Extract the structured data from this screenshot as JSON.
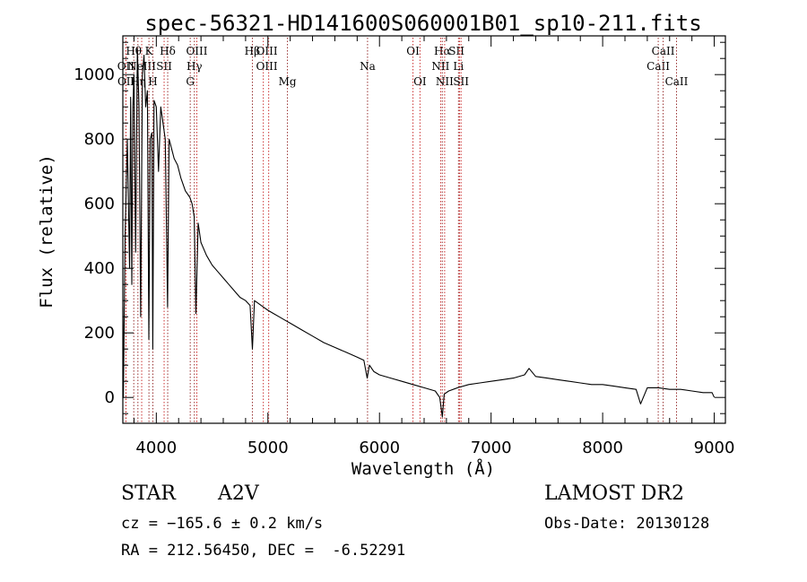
{
  "chart_data": {
    "type": "line",
    "title": "spec-56321-HD141600S060001B01_sp10-211.fits",
    "xlabel": "Wavelength (Å)",
    "ylabel": "Flux (relative)",
    "xlim": [
      3700,
      9100
    ],
    "ylim": [
      -80,
      1120
    ],
    "xticks": [
      4000,
      5000,
      6000,
      7000,
      8000,
      9000
    ],
    "yticks": [
      0,
      200,
      400,
      600,
      800,
      1000
    ],
    "grid": false,
    "series": [
      {
        "color": "#000000",
        "x": [
          3700,
          3705,
          3720,
          3740,
          3760,
          3770,
          3780,
          3790,
          3800,
          3815,
          3830,
          3845,
          3860,
          3875,
          3890,
          3905,
          3920,
          3933,
          3945,
          3960,
          3968,
          3980,
          4000,
          4020,
          4040,
          4060,
          4080,
          4101,
          4115,
          4130,
          4160,
          4190,
          4220,
          4260,
          4300,
          4320,
          4340,
          4355,
          4375,
          4400,
          4450,
          4500,
          4550,
          4600,
          4650,
          4700,
          4750,
          4800,
          4840,
          4861,
          4880,
          4920,
          4960,
          5000,
          5050,
          5100,
          5150,
          5200,
          5300,
          5400,
          5500,
          5600,
          5700,
          5800,
          5860,
          5890,
          5910,
          5950,
          6000,
          6100,
          6200,
          6300,
          6400,
          6500,
          6540,
          6563,
          6580,
          6620,
          6700,
          6800,
          6900,
          7000,
          7100,
          7200,
          7300,
          7340,
          7400,
          7500,
          7600,
          7700,
          7800,
          7900,
          8000,
          8100,
          8200,
          8300,
          8340,
          8400,
          8500,
          8600,
          8700,
          8800,
          8900,
          8980,
          9000
        ],
        "y": [
          280,
          0,
          500,
          800,
          400,
          930,
          350,
          900,
          1000,
          450,
          1080,
          900,
          250,
          1000,
          1060,
          900,
          950,
          180,
          800,
          820,
          150,
          920,
          900,
          700,
          900,
          850,
          800,
          280,
          800,
          780,
          740,
          720,
          680,
          640,
          620,
          600,
          560,
          260,
          540,
          480,
          440,
          410,
          390,
          370,
          350,
          330,
          310,
          300,
          285,
          150,
          300,
          290,
          280,
          270,
          260,
          250,
          240,
          230,
          210,
          190,
          170,
          155,
          140,
          125,
          115,
          60,
          100,
          80,
          70,
          60,
          50,
          40,
          30,
          20,
          0,
          -60,
          10,
          20,
          30,
          40,
          45,
          50,
          55,
          60,
          70,
          90,
          65,
          60,
          55,
          50,
          45,
          40,
          40,
          35,
          30,
          25,
          -20,
          30,
          30,
          25,
          25,
          20,
          15,
          15,
          0
        ]
      }
    ],
    "line_markers": [
      {
        "label": "Hβ",
        "wave": 4861,
        "row": 1,
        "kind": "unshifted",
        "text_x": 4860
      },
      {
        "label": "OIII",
        "wave": 4959,
        "row": 1,
        "kind": "shifted",
        "text_x": 4990
      },
      {
        "label": "OIII",
        "wave": 5007,
        "row": 2,
        "kind": "shifted",
        "text_x": 4990
      },
      {
        "label": "Mg",
        "wave": 5175,
        "row": 3,
        "kind": "unshifted",
        "text_x": 5175
      },
      {
        "label": "Na",
        "wave": 5893,
        "row": 2,
        "kind": "unshifted",
        "text_x": 5893
      },
      {
        "label": "OI",
        "wave": 6300,
        "row": 1,
        "kind": "shifted",
        "text_x": 6300
      },
      {
        "label": "OI",
        "wave": 6363,
        "row": 3,
        "kind": "shifted",
        "text_x": 6363
      },
      {
        "label": "Hα",
        "wave": 6563,
        "row": 1,
        "kind": "unshifted",
        "text_x": 6563
      },
      {
        "label": "NII",
        "wave": 6548,
        "row": 2,
        "kind": "shifted",
        "text_x": 6548
      },
      {
        "label": "NII",
        "wave": 6584,
        "row": 3,
        "kind": "shifted",
        "text_x": 6584
      },
      {
        "label": "SII",
        "wave": 6717,
        "row": 1,
        "kind": "shifted",
        "text_x": 6690
      },
      {
        "label": "Li",
        "wave": 6708,
        "row": 2,
        "kind": "unshifted",
        "text_x": 6708
      },
      {
        "label": "SII",
        "wave": 6731,
        "row": 3,
        "kind": "shifted",
        "text_x": 6731
      },
      {
        "label": "CaII",
        "wave": 8498,
        "row": 2,
        "kind": "unshifted",
        "text_x": 8498
      },
      {
        "label": "CaII",
        "wave": 8542,
        "row": 1,
        "kind": "unshifted",
        "text_x": 8542
      },
      {
        "label": "CaII",
        "wave": 8662,
        "row": 3,
        "kind": "unshifted",
        "text_x": 8662
      },
      {
        "label": "OII",
        "wave": 3727,
        "row": 2,
        "kind": "shifted",
        "text_x": 3727
      },
      {
        "label": "OII",
        "wave": 3729,
        "row": 3,
        "kind": "shifted",
        "text_x": 3729
      },
      {
        "label": "Hθ",
        "wave": 3798,
        "row": 1,
        "kind": "unshifted",
        "text_x": 3798
      },
      {
        "label": "Hη",
        "wave": 3835,
        "row": 3,
        "kind": "unshifted",
        "text_x": 3835
      },
      {
        "label": "NeIII",
        "wave": 3869,
        "row": 2,
        "kind": "shifted",
        "text_x": 3869
      },
      {
        "label": "K",
        "wave": 3934,
        "row": 1,
        "kind": "unshifted",
        "text_x": 3934
      },
      {
        "label": "H",
        "wave": 3969,
        "row": 3,
        "kind": "unshifted",
        "text_x": 3969
      },
      {
        "label": "SII",
        "wave": 4070,
        "row": 2,
        "kind": "shifted",
        "text_x": 4070
      },
      {
        "label": "Hδ",
        "wave": 4102,
        "row": 1,
        "kind": "unshifted",
        "text_x": 4102
      },
      {
        "label": "G",
        "wave": 4304,
        "row": 3,
        "kind": "unshifted",
        "text_x": 4304
      },
      {
        "label": "OIII",
        "wave": 4363,
        "row": 1,
        "kind": "shifted",
        "text_x": 4363
      },
      {
        "label": "Hγ",
        "wave": 4341,
        "row": 2,
        "kind": "unshifted",
        "text_x": 4341
      }
    ]
  },
  "info": {
    "class_label": "STAR",
    "subclass": "A2V",
    "survey": "LAMOST DR2",
    "cz": "cz = −165.6 ± 0.2 km/s",
    "obs_date": "Obs-Date: 20130128",
    "coords": "RA = 212.56450, DEC =  -6.52291"
  },
  "colors": {
    "spectrum": "#000000",
    "shifted_marker": "#cc3333",
    "unshifted_marker": "#993333",
    "axis": "#000000"
  }
}
